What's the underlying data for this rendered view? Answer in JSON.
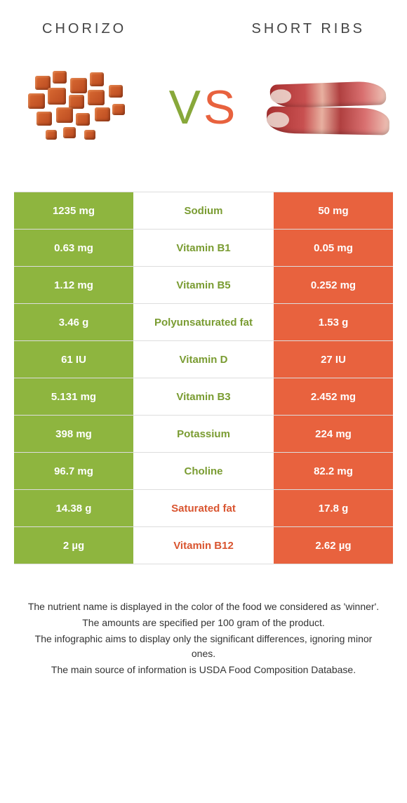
{
  "left_food": "CHORIZO",
  "right_food": "SHORT RIBS",
  "colors": {
    "left_bg": "#8eb53f",
    "right_bg": "#e8623e",
    "left_text": "#7a9c32",
    "right_text": "#d95530",
    "border": "#dddddd",
    "page_bg": "#ffffff"
  },
  "typography": {
    "title_fontsize": 20,
    "title_letter_spacing": 4,
    "vs_fontsize": 68,
    "cell_fontsize": 15,
    "footer_fontsize": 14
  },
  "rows": [
    {
      "left": "1235 mg",
      "label": "Sodium",
      "right": "50 mg",
      "winner": "left"
    },
    {
      "left": "0.63 mg",
      "label": "Vitamin B1",
      "right": "0.05 mg",
      "winner": "left"
    },
    {
      "left": "1.12 mg",
      "label": "Vitamin B5",
      "right": "0.252 mg",
      "winner": "left"
    },
    {
      "left": "3.46 g",
      "label": "Polyunsaturated fat",
      "right": "1.53 g",
      "winner": "left"
    },
    {
      "left": "61 IU",
      "label": "Vitamin D",
      "right": "27 IU",
      "winner": "left"
    },
    {
      "left": "5.131 mg",
      "label": "Vitamin B3",
      "right": "2.452 mg",
      "winner": "left"
    },
    {
      "left": "398 mg",
      "label": "Potassium",
      "right": "224 mg",
      "winner": "left"
    },
    {
      "left": "96.7 mg",
      "label": "Choline",
      "right": "82.2 mg",
      "winner": "left"
    },
    {
      "left": "14.38 g",
      "label": "Saturated fat",
      "right": "17.8 g",
      "winner": "right"
    },
    {
      "left": "2 µg",
      "label": "Vitamin B12",
      "right": "2.62 µg",
      "winner": "right"
    }
  ],
  "footer": [
    "The nutrient name is displayed in the color of the food we considered as 'winner'.",
    "The amounts are specified per 100 gram of the product.",
    "The infographic aims to display only the significant differences, ignoring minor ones.",
    "The main source of information is USDA Food Composition Database."
  ]
}
